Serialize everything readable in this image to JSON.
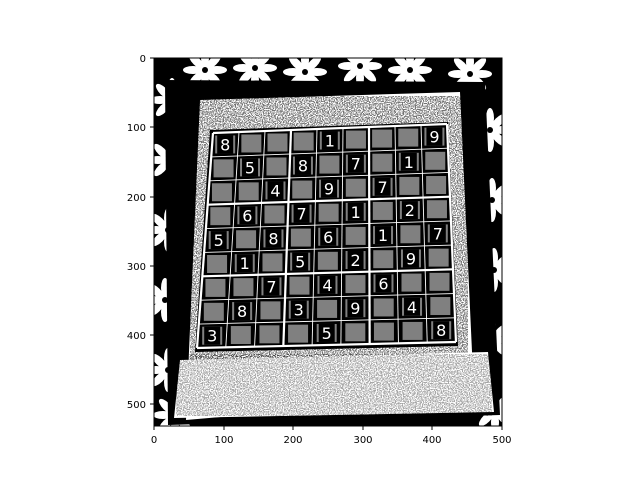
{
  "axes": {
    "x_ticks": [
      "0",
      "100",
      "200",
      "300",
      "400",
      "500"
    ],
    "y_ticks": [
      "0",
      "100",
      "200",
      "300",
      "400",
      "500"
    ],
    "xlim": [
      0,
      500
    ],
    "ylim_inverted": [
      532,
      0
    ]
  },
  "image": {
    "colors": {
      "foreground": "#ffffff",
      "background": "#000000"
    },
    "grid_digits": [
      [
        "8",
        "",
        "",
        "",
        "1",
        "",
        "",
        "",
        "9"
      ],
      [
        "",
        "5",
        "",
        "8",
        "",
        "7",
        "",
        "1",
        ""
      ],
      [
        "",
        "",
        "4",
        "",
        "9",
        "",
        "7",
        "",
        ""
      ],
      [
        "",
        "6",
        "",
        "7",
        "",
        "1",
        "",
        "2",
        ""
      ],
      [
        "5",
        "",
        "8",
        "",
        "6",
        "",
        "1",
        "",
        "7"
      ],
      [
        "",
        "1",
        "",
        "5",
        "",
        "2",
        "",
        "9",
        ""
      ],
      [
        "",
        "",
        "7",
        "",
        "4",
        "",
        "6",
        "",
        ""
      ],
      [
        "",
        "8",
        "",
        "3",
        "",
        "9",
        "",
        "4",
        ""
      ],
      [
        "3",
        "",
        "",
        "",
        "5",
        "",
        "",
        "",
        "8"
      ]
    ]
  }
}
